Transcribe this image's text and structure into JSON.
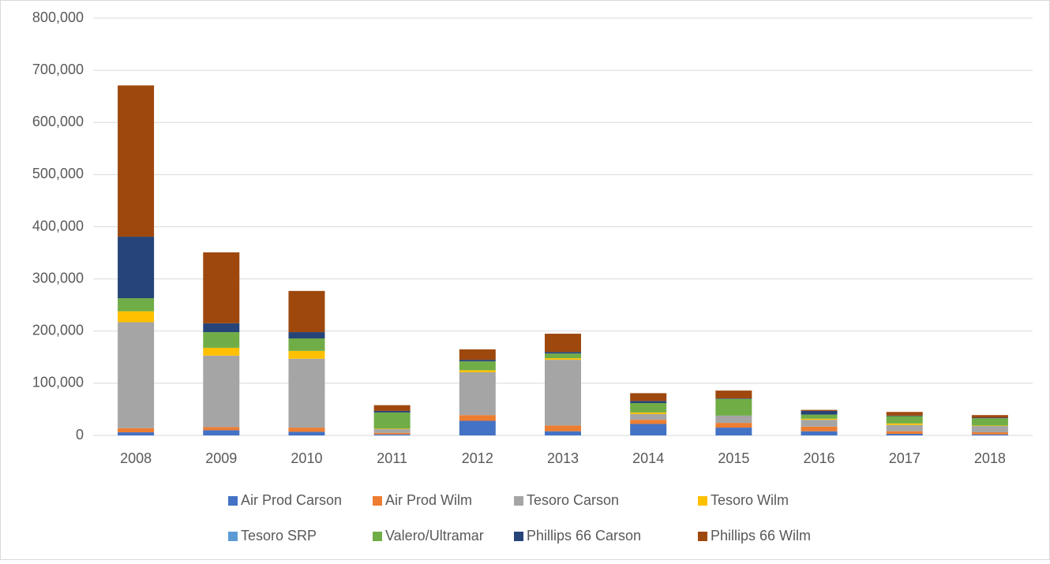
{
  "chart_data": {
    "type": "stacked_bar",
    "categories": [
      "2008",
      "2009",
      "2010",
      "2011",
      "2012",
      "2013",
      "2014",
      "2015",
      "2016",
      "2017",
      "2018"
    ],
    "series": [
      {
        "name": "Air Prod Carson",
        "color": "#4472c4",
        "values": [
          6000,
          10000,
          7000,
          2000,
          28000,
          8000,
          22000,
          15000,
          8000,
          3000,
          2000
        ]
      },
      {
        "name": "Air Prod Wilm",
        "color": "#ed7d31",
        "values": [
          8000,
          6000,
          8000,
          3000,
          11000,
          11000,
          8000,
          9000,
          9000,
          5000,
          4000
        ]
      },
      {
        "name": "Tesoro Carson",
        "color": "#a5a5a5",
        "values": [
          203000,
          137000,
          132000,
          7000,
          82000,
          126000,
          11000,
          14000,
          13000,
          12000,
          12000
        ]
      },
      {
        "name": "Tesoro Wilm",
        "color": "#ffc000",
        "values": [
          21000,
          15000,
          15000,
          1000,
          4000,
          3000,
          3000,
          0,
          2000,
          3000,
          1000
        ]
      },
      {
        "name": "Tesoro SRP",
        "color": "#5b9bd5",
        "values": [
          0,
          0,
          0,
          0,
          0,
          0,
          0,
          0,
          0,
          0,
          0
        ]
      },
      {
        "name": "Valero/Ultramar",
        "color": "#70ad47",
        "values": [
          25000,
          30000,
          24000,
          31000,
          17000,
          9000,
          18000,
          32000,
          8000,
          14000,
          14000
        ]
      },
      {
        "name": "Phillips 66 Carson",
        "color": "#264478",
        "values": [
          118000,
          17000,
          12000,
          3000,
          3000,
          3000,
          4000,
          1000,
          7000,
          1000,
          1000
        ]
      },
      {
        "name": "Phillips 66 Wilm",
        "color": "#9e480e",
        "values": [
          290000,
          136000,
          79000,
          11000,
          20000,
          35000,
          15000,
          15000,
          2000,
          7000,
          5000
        ]
      }
    ],
    "ylim": [
      0,
      800000
    ],
    "yticks": [
      0,
      {
        "value": 100000,
        "label": "100,000"
      },
      {
        "value": 200000,
        "label": "200,000"
      },
      {
        "value": 300000,
        "label": "300,000"
      },
      {
        "value": 400000,
        "label": "400,000"
      },
      {
        "value": 500000,
        "label": "500,000"
      },
      {
        "value": 600000,
        "label": "600,000"
      },
      {
        "value": 700000,
        "label": "700,000"
      },
      {
        "value": 800000,
        "label": "800,000"
      }
    ],
    "grid": true
  }
}
